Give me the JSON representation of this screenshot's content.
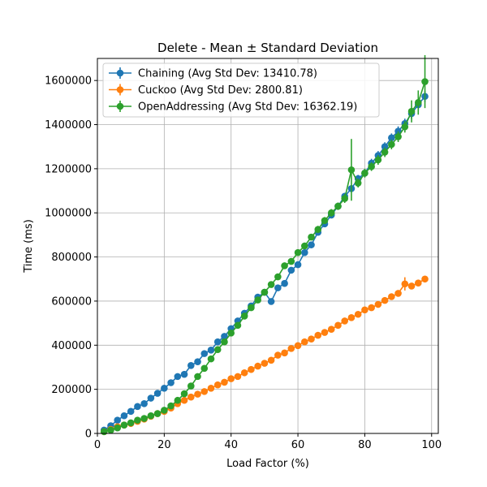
{
  "chart_data": {
    "type": "line",
    "title": "Delete - Mean ± Standard Deviation",
    "xlabel": "Load Factor (%)",
    "ylabel": "Time (ms)",
    "xlim": [
      0,
      102
    ],
    "ylim": [
      0,
      1700000
    ],
    "xticks": [
      0,
      20,
      40,
      60,
      80,
      100
    ],
    "xtick_labels": [
      "0",
      "20",
      "40",
      "60",
      "80",
      "100"
    ],
    "yticks": [
      0,
      200000,
      400000,
      600000,
      800000,
      1000000,
      1200000,
      1400000,
      1600000
    ],
    "ytick_labels": [
      "0",
      "200000",
      "400000",
      "600000",
      "800000",
      "1000000",
      "1200000",
      "1400000",
      "1600000"
    ],
    "grid": true,
    "legend_position": "upper-left",
    "x": [
      2,
      4,
      6,
      8,
      10,
      12,
      14,
      16,
      18,
      20,
      22,
      24,
      26,
      28,
      30,
      32,
      34,
      36,
      38,
      40,
      42,
      44,
      46,
      48,
      50,
      52,
      54,
      56,
      58,
      60,
      62,
      64,
      66,
      68,
      70,
      72,
      74,
      76,
      78,
      80,
      82,
      84,
      86,
      88,
      90,
      92,
      94,
      96,
      98
    ],
    "series": [
      {
        "name": "Chaining (Avg Std Dev: 13410.78)",
        "color": "#1f77b4",
        "values": [
          15000,
          35000,
          60000,
          80000,
          100000,
          122000,
          135000,
          160000,
          182000,
          205000,
          230000,
          258000,
          268000,
          308000,
          325000,
          362000,
          378000,
          415000,
          440000,
          475000,
          510000,
          545000,
          578000,
          618000,
          640000,
          598000,
          660000,
          680000,
          740000,
          765000,
          820000,
          855000,
          912000,
          950000,
          990000,
          1030000,
          1075000,
          1110000,
          1155000,
          1180000,
          1225000,
          1260000,
          1300000,
          1340000,
          1370000,
          1405000,
          1450000,
          1490000,
          1528000
        ],
        "std": [
          3000,
          3000,
          3000,
          3000,
          3000,
          4000,
          4000,
          4000,
          4000,
          5000,
          5000,
          6000,
          6000,
          6000,
          7000,
          7000,
          7000,
          8000,
          8000,
          8000,
          9000,
          9000,
          9000,
          10000,
          10000,
          10000,
          11000,
          11000,
          12000,
          12000,
          13000,
          13000,
          14000,
          14000,
          15000,
          15000,
          16000,
          16000,
          17000,
          18000,
          20000,
          20000,
          20000,
          20000,
          22000,
          22000,
          24000,
          24000,
          26000
        ]
      },
      {
        "name": "Cuckoo (Avg Std Dev: 2800.81)",
        "color": "#ff7f0e",
        "values": [
          8000,
          18000,
          30000,
          38000,
          45000,
          55000,
          65000,
          78000,
          90000,
          100000,
          115000,
          135000,
          150000,
          165000,
          178000,
          190000,
          205000,
          220000,
          232000,
          248000,
          258000,
          275000,
          290000,
          305000,
          318000,
          332000,
          355000,
          365000,
          385000,
          398000,
          415000,
          428000,
          445000,
          458000,
          472000,
          490000,
          510000,
          525000,
          540000,
          560000,
          570000,
          585000,
          603000,
          620000,
          635000,
          678000,
          668000,
          682000,
          700000
        ],
        "std": [
          1000,
          1000,
          1000,
          1000,
          1000,
          1500,
          1500,
          1500,
          1500,
          1500,
          2000,
          2000,
          2000,
          2000,
          2000,
          2500,
          2500,
          2500,
          2500,
          2500,
          2500,
          3000,
          3000,
          3000,
          3000,
          3000,
          3000,
          3000,
          3000,
          3000,
          3000,
          3000,
          3500,
          3500,
          3500,
          3500,
          3500,
          3500,
          3500,
          3500,
          3500,
          4000,
          4000,
          4000,
          8000,
          30000,
          6000,
          6000,
          8000
        ]
      },
      {
        "name": "OpenAddressing (Avg Std Dev: 16362.19)",
        "color": "#2ca02c",
        "values": [
          8000,
          15000,
          25000,
          38000,
          48000,
          60000,
          68000,
          80000,
          90000,
          105000,
          125000,
          150000,
          180000,
          215000,
          258000,
          295000,
          338000,
          380000,
          415000,
          455000,
          490000,
          532000,
          570000,
          605000,
          640000,
          675000,
          710000,
          760000,
          780000,
          820000,
          850000,
          890000,
          925000,
          965000,
          1000000,
          1030000,
          1065000,
          1195000,
          1135000,
          1180000,
          1210000,
          1240000,
          1275000,
          1310000,
          1345000,
          1390000,
          1460000,
          1500000,
          1595000
        ],
        "std": [
          2000,
          2000,
          3000,
          3000,
          3000,
          4000,
          4000,
          4000,
          5000,
          5000,
          5000,
          6000,
          6000,
          7000,
          7000,
          8000,
          8000,
          9000,
          9000,
          10000,
          10000,
          11000,
          11000,
          12000,
          12000,
          12000,
          13000,
          13000,
          14000,
          14000,
          15000,
          15000,
          16000,
          16000,
          17000,
          17000,
          20000,
          140000,
          20000,
          20000,
          20000,
          22000,
          22000,
          22000,
          24000,
          26000,
          50000,
          55000,
          120000
        ]
      }
    ]
  }
}
